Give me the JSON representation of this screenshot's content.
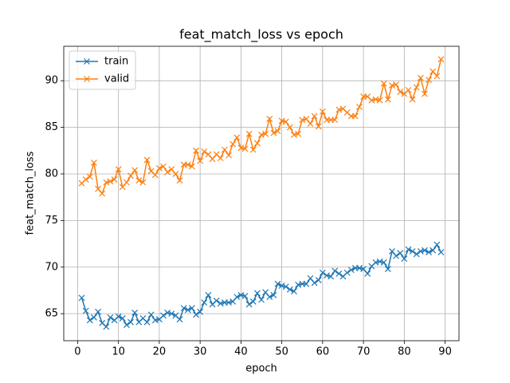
{
  "chart_data": {
    "type": "line",
    "title": "feat_match_loss vs epoch",
    "x_label": "epoch",
    "y_label": "feat_match_loss",
    "x": [
      1,
      2,
      3,
      4,
      5,
      6,
      7,
      8,
      9,
      10,
      11,
      12,
      13,
      14,
      15,
      16,
      17,
      18,
      19,
      20,
      21,
      22,
      23,
      24,
      25,
      26,
      27,
      28,
      29,
      30,
      31,
      32,
      33,
      34,
      35,
      36,
      37,
      38,
      39,
      40,
      41,
      42,
      43,
      44,
      45,
      46,
      47,
      48,
      49,
      50,
      51,
      52,
      53,
      54,
      55,
      56,
      57,
      58,
      59,
      60,
      61,
      62,
      63,
      64,
      65,
      66,
      67,
      68,
      69,
      70,
      71,
      72,
      73,
      74,
      75,
      76,
      77,
      78,
      79,
      80,
      81,
      82,
      83,
      84,
      85,
      86,
      87,
      88,
      89
    ],
    "series": [
      {
        "name": "train",
        "color": "#1f77b4",
        "values": [
          66.7,
          65.3,
          64.3,
          64.6,
          65.2,
          64.0,
          63.6,
          64.6,
          64.3,
          64.7,
          64.5,
          63.8,
          64.1,
          65.1,
          64.1,
          64.5,
          64.1,
          64.9,
          64.3,
          64.4,
          64.8,
          65.1,
          65.0,
          64.8,
          64.4,
          65.6,
          65.4,
          65.6,
          64.9,
          65.2,
          66.2,
          67.0,
          66.0,
          66.4,
          66.1,
          66.2,
          66.2,
          66.3,
          66.8,
          67.0,
          66.9,
          66.0,
          66.3,
          67.2,
          66.5,
          67.3,
          66.8,
          67.0,
          68.2,
          68.0,
          67.9,
          67.6,
          67.4,
          68.1,
          68.2,
          68.2,
          68.8,
          68.3,
          68.6,
          69.4,
          69.1,
          69.0,
          69.6,
          69.3,
          69.0,
          69.4,
          69.7,
          69.9,
          69.9,
          69.8,
          69.3,
          70.1,
          70.5,
          70.6,
          70.5,
          69.8,
          71.7,
          71.2,
          71.5,
          70.9,
          71.9,
          71.7,
          71.4,
          71.7,
          71.8,
          71.6,
          71.8,
          72.4,
          71.6
        ]
      },
      {
        "name": "valid",
        "color": "#ff7f0e",
        "values": [
          79.0,
          79.4,
          79.7,
          81.2,
          78.4,
          77.9,
          79.1,
          79.2,
          79.4,
          80.5,
          78.6,
          79.1,
          79.8,
          80.4,
          79.3,
          79.1,
          81.5,
          80.3,
          79.9,
          80.6,
          80.8,
          80.2,
          80.5,
          80.0,
          79.3,
          81.0,
          81.0,
          80.8,
          82.5,
          81.4,
          82.4,
          82.1,
          81.6,
          82.1,
          81.7,
          82.6,
          82.0,
          83.2,
          83.9,
          82.8,
          82.7,
          84.3,
          82.6,
          83.3,
          84.2,
          84.3,
          85.9,
          84.4,
          84.6,
          85.7,
          85.6,
          85.0,
          84.2,
          84.3,
          85.8,
          85.9,
          85.4,
          86.2,
          85.1,
          86.7,
          85.8,
          85.8,
          85.8,
          86.9,
          87.0,
          86.6,
          86.2,
          86.2,
          87.2,
          88.3,
          88.3,
          87.9,
          88.0,
          87.9,
          89.7,
          88.0,
          89.5,
          89.6,
          88.8,
          88.6,
          89.0,
          88.0,
          89.3,
          90.3,
          88.6,
          90.1,
          91.0,
          90.5,
          92.3
        ]
      }
    ],
    "xlim": [
      -3.4,
      93.4
    ],
    "xticks": [
      0,
      10,
      20,
      30,
      40,
      50,
      60,
      70,
      80,
      90
    ],
    "ylim": [
      62.1,
      93.7
    ],
    "yticks": [
      65,
      70,
      75,
      80,
      85,
      90
    ],
    "grid": true,
    "legend": "upper left",
    "marker": "x"
  }
}
